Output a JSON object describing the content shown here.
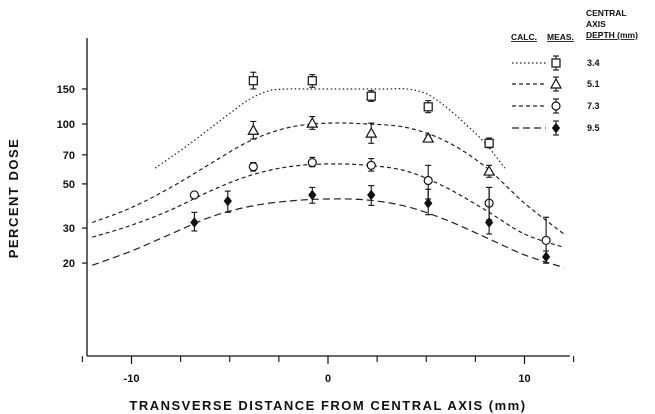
{
  "chart_data": {
    "type": "line",
    "title": "",
    "xlabel": "TRANSVERSE DISTANCE FROM CENTRAL AXIS (mm)",
    "ylabel": "PERCENT DOSE",
    "yscale": "log",
    "xlim": [
      -13,
      12
    ],
    "ylim": [
      18,
      200
    ],
    "x_ticks": [
      -10,
      0,
      10
    ],
    "x_minor_ticks": [
      -12.5,
      -7.5,
      -5,
      -2.5,
      2.5,
      5,
      7.5,
      12.5
    ],
    "y_ticks": [
      20,
      30,
      50,
      70,
      100,
      150
    ],
    "grid": false,
    "legend": {
      "position": "top-right",
      "calc_header": "CALC.",
      "meas_header": "MEAS.",
      "depth_header": [
        "CENTRAL",
        "AXIS",
        "DEPTH (mm)"
      ]
    },
    "series": [
      {
        "name": "3.4",
        "marker": "square",
        "line_style": "dotted",
        "calc_x": [
          -8.8,
          -8,
          -7,
          -6,
          -5,
          -4,
          -3,
          -2,
          -1,
          0,
          1,
          2,
          3,
          4,
          5,
          6,
          7,
          8,
          9
        ],
        "calc_y": [
          60,
          68,
          80,
          95,
          113,
          133,
          147,
          150,
          150,
          150,
          150,
          150,
          150,
          150,
          142,
          122,
          100,
          80,
          60
        ],
        "meas_x": [
          -3.8,
          -0.8,
          2.2,
          5.1,
          8.2
        ],
        "meas_y": [
          165,
          165,
          138,
          122,
          80
        ],
        "err_lo": [
          150,
          153,
          130,
          114,
          76
        ],
        "err_hi": [
          182,
          177,
          147,
          131,
          85
        ]
      },
      {
        "name": "5.1",
        "marker": "triangle",
        "line_style": "dashed",
        "calc_x": [
          -12,
          -10,
          -8,
          -6,
          -4,
          -2,
          0,
          2,
          4,
          6,
          8,
          10,
          12
        ],
        "calc_y": [
          32,
          38,
          48,
          63,
          82,
          96,
          101,
          100,
          96,
          82,
          61,
          40,
          28
        ],
        "meas_x": [
          -3.8,
          -0.8,
          2.2,
          5.1,
          8.2
        ],
        "meas_y": [
          93,
          101,
          90,
          85,
          58
        ],
        "err_lo": [
          84,
          94,
          80,
          82,
          54
        ],
        "err_hi": [
          103,
          109,
          101,
          88,
          62
        ]
      },
      {
        "name": "7.3",
        "marker": "circle",
        "line_style": "dashed",
        "calc_x": [
          -12,
          -10,
          -8,
          -6,
          -4,
          -2,
          0,
          2,
          4,
          6,
          8,
          10,
          12
        ],
        "calc_y": [
          27,
          31,
          37,
          46,
          55,
          61,
          63,
          62,
          58,
          48,
          37,
          28,
          24
        ],
        "meas_x": [
          -6.8,
          -3.8,
          -0.8,
          2.2,
          5.1,
          8.2,
          11.1
        ],
        "meas_y": [
          44,
          61,
          64,
          62,
          52,
          40,
          26
        ],
        "err_lo": [
          43,
          58,
          61,
          58,
          42,
          33,
          20
        ],
        "err_hi": [
          45,
          64,
          68,
          67,
          62,
          48,
          34
        ]
      },
      {
        "name": "9.5",
        "marker": "diamond",
        "line_style": "long-dash",
        "calc_x": [
          -12,
          -10,
          -8,
          -6,
          -4,
          -2,
          0,
          2,
          4,
          6,
          8,
          10,
          12
        ],
        "calc_y": [
          19.5,
          23,
          28,
          34,
          38.5,
          41,
          42,
          41.5,
          38.5,
          33,
          27,
          22,
          19
        ],
        "meas_x": [
          -6.8,
          -5.1,
          -0.8,
          2.2,
          5.1,
          8.2,
          11.1
        ],
        "meas_y": [
          32,
          41,
          44,
          44,
          40,
          32,
          21.5
        ],
        "err_lo": [
          29,
          36,
          40,
          39,
          35,
          28,
          20
        ],
        "err_hi": [
          36,
          46,
          48,
          49,
          47,
          48,
          23
        ]
      }
    ]
  }
}
